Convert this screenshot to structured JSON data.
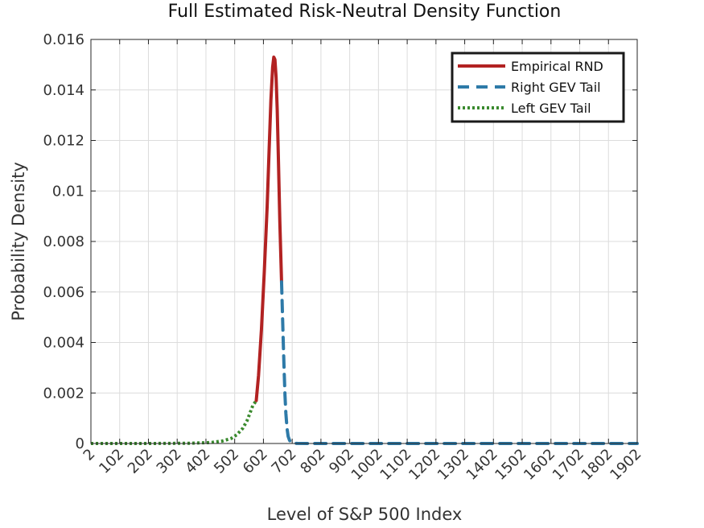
{
  "chart_data": {
    "type": "line",
    "title": "Full Estimated Risk-Neutral Density Function",
    "xlabel": "Level of S&P 500 Index",
    "ylabel": "Probability Density",
    "xlim": [
      2,
      1902
    ],
    "ylim": [
      0,
      0.016
    ],
    "xticks": [
      2,
      102,
      202,
      302,
      402,
      502,
      602,
      702,
      802,
      902,
      1002,
      1102,
      1202,
      1302,
      1402,
      1502,
      1602,
      1702,
      1802,
      1902
    ],
    "xtick_labels": [
      "2",
      "102",
      "202",
      "302",
      "402",
      "502",
      "602",
      "702",
      "802",
      "902",
      "1002",
      "1102",
      "1202",
      "1302",
      "1402",
      "1502",
      "1602",
      "1702",
      "1802",
      "1902"
    ],
    "yticks": [
      0,
      0.002,
      0.004,
      0.006,
      0.008,
      0.01,
      0.012,
      0.014,
      0.016
    ],
    "ytick_labels": [
      "0",
      "0.002",
      "0.004",
      "0.006",
      "0.008",
      "0.01",
      "0.012",
      "0.014",
      "0.016"
    ],
    "grid": true,
    "legend_position": "top-right",
    "series": [
      {
        "name": "Empirical RND",
        "color": "#b22222",
        "style": "solid",
        "x": [
          577,
          585,
          595,
          605,
          615,
          622,
          628,
          634,
          638,
          642,
          646,
          650,
          654,
          659,
          665
        ],
        "y": [
          0.0017,
          0.0027,
          0.0045,
          0.0068,
          0.0094,
          0.0117,
          0.0136,
          0.0149,
          0.0153,
          0.0152,
          0.0145,
          0.0132,
          0.0113,
          0.0088,
          0.0064
        ]
      },
      {
        "name": "Right GEV Tail",
        "color": "#2e7aa8",
        "style": "dashed",
        "x": [
          665,
          668,
          671,
          674,
          677,
          680,
          684,
          688,
          693,
          700,
          708,
          720,
          760,
          900,
          1200,
          1500,
          1902
        ],
        "y": [
          0.0064,
          0.0052,
          0.004,
          0.0029,
          0.0019,
          0.0012,
          0.0006,
          0.00028,
          0.00012,
          4e-05,
          1e-05,
          3e-06,
          0,
          0,
          0,
          0,
          0
        ]
      },
      {
        "name": "Left GEV Tail",
        "color": "#3a8a2e",
        "style": "dotted",
        "x": [
          2,
          200,
          350,
          420,
          460,
          490,
          510,
          530,
          545,
          555,
          565,
          577
        ],
        "y": [
          0,
          0,
          1e-05,
          4e-05,
          0.0001,
          0.0002,
          0.00035,
          0.0006,
          0.0009,
          0.0012,
          0.0015,
          0.0017
        ]
      }
    ]
  }
}
